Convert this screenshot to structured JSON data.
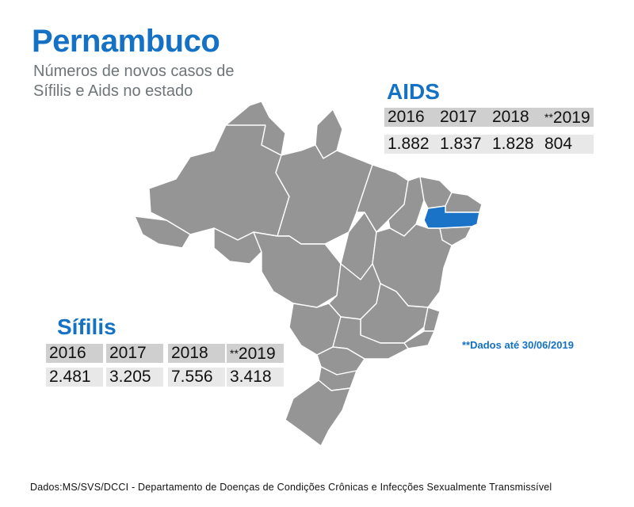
{
  "header": {
    "title": "Pernambuco",
    "subtitle": "Números de novos casos de Sífilis e Aids no estado"
  },
  "aids": {
    "title": "AIDS",
    "years": [
      "2016",
      "2017",
      "2018",
      "2019"
    ],
    "values": [
      "1.882",
      "1.837",
      "1.828",
      "804"
    ]
  },
  "sifilis": {
    "title": "Sífilis",
    "years": [
      "2016",
      "2017",
      "2018",
      "2019"
    ],
    "values": [
      "2.481",
      "3.205",
      "7.556",
      "3.418"
    ]
  },
  "star_mark": "**",
  "note": "**Dados até 30/06/2019",
  "source": "Dados:MS/SVS/DCCI - Departamento de Doenças de Condições Crônicas e Infecções Sexualmente Transmissível",
  "colors": {
    "accent": "#1471c4",
    "map_fill": "#959595",
    "highlight_state": "#1a73c6",
    "year_cell": "#cfcfcf",
    "value_cell": "#e8e8e8"
  }
}
